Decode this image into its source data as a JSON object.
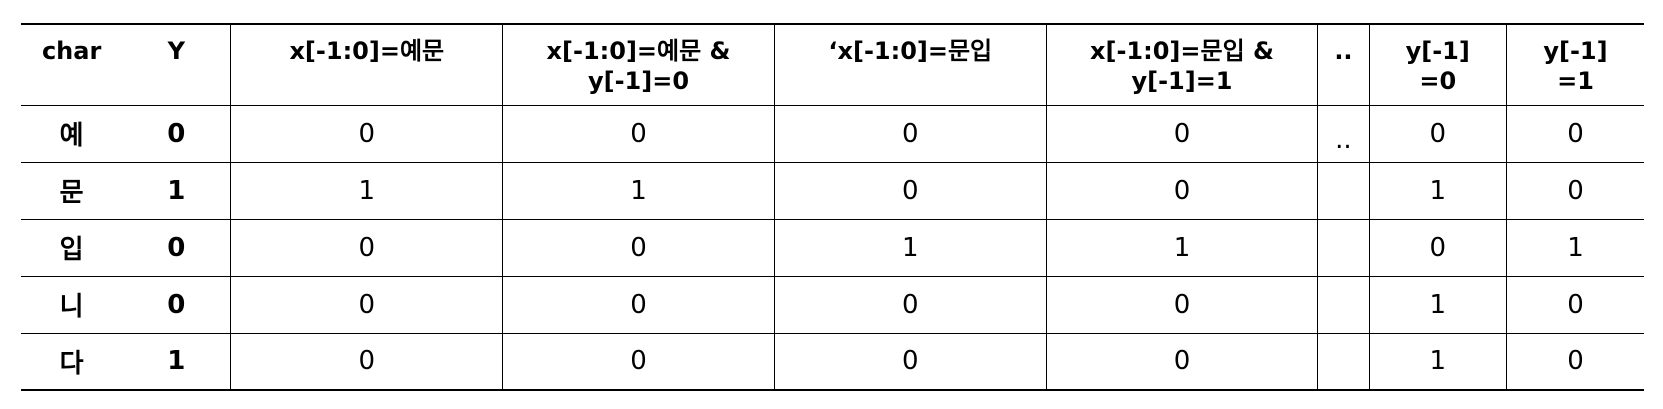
{
  "table": {
    "headers": [
      "char",
      "Y",
      "x[-1:0]=예문",
      "x[-1:0]=예문 &\ny[-1]=0",
      "‘x[-1:0]=문입",
      "x[-1:0]=문입 &\ny[-1]=1",
      "..",
      "y[-1]\n=0",
      "y[-1]\n=1"
    ],
    "rows": [
      [
        "예",
        "0",
        "0",
        "0",
        "0",
        "0",
        "..",
        "0",
        "0"
      ],
      [
        "문",
        "1",
        "1",
        "1",
        "0",
        "0",
        "",
        "1",
        "0"
      ],
      [
        "입",
        "0",
        "0",
        "0",
        "1",
        "1",
        "",
        "0",
        "1"
      ],
      [
        "니",
        "0",
        "0",
        "0",
        "0",
        "0",
        "",
        "1",
        "0"
      ],
      [
        "다",
        "1",
        "0",
        "0",
        "0",
        "0",
        "",
        "1",
        "0"
      ]
    ]
  }
}
